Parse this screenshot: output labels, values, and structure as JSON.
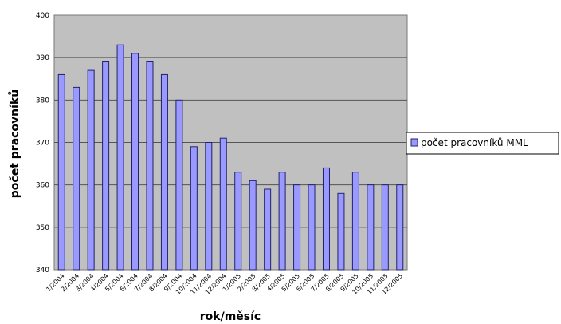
{
  "chart_data": {
    "type": "bar",
    "xlabel": "rok/měsíc",
    "ylabel": "počet pracovníků",
    "ylim": [
      340,
      400
    ],
    "yticks": [
      340,
      350,
      360,
      370,
      380,
      390,
      400
    ],
    "grid": true,
    "legend_position": "right",
    "categories": [
      "1/2004",
      "2/2004",
      "3/2004",
      "4/2004",
      "5/2004",
      "6/2004",
      "7/2004",
      "8/2004",
      "9/2004",
      "10/2004",
      "11/2004",
      "12/2004",
      "1/2005",
      "2/2005",
      "3/2005",
      "4/2005",
      "5/2005",
      "6/2005",
      "7/2005",
      "8/2005",
      "9/2005",
      "10/2005",
      "11/2005",
      "12/2005"
    ],
    "series": [
      {
        "name": "počet pracovníků MML",
        "values": [
          386,
          383,
          387,
          389,
          393,
          391,
          389,
          386,
          380,
          369,
          370,
          371,
          363,
          361,
          359,
          363,
          360,
          360,
          364,
          358,
          363,
          360,
          360,
          360
        ]
      }
    ],
    "colors": {
      "plot_background": "#c0c0c0",
      "bar_fill": "#9999ff",
      "bar_stroke": "#22226b",
      "gridline": "#555555"
    }
  }
}
